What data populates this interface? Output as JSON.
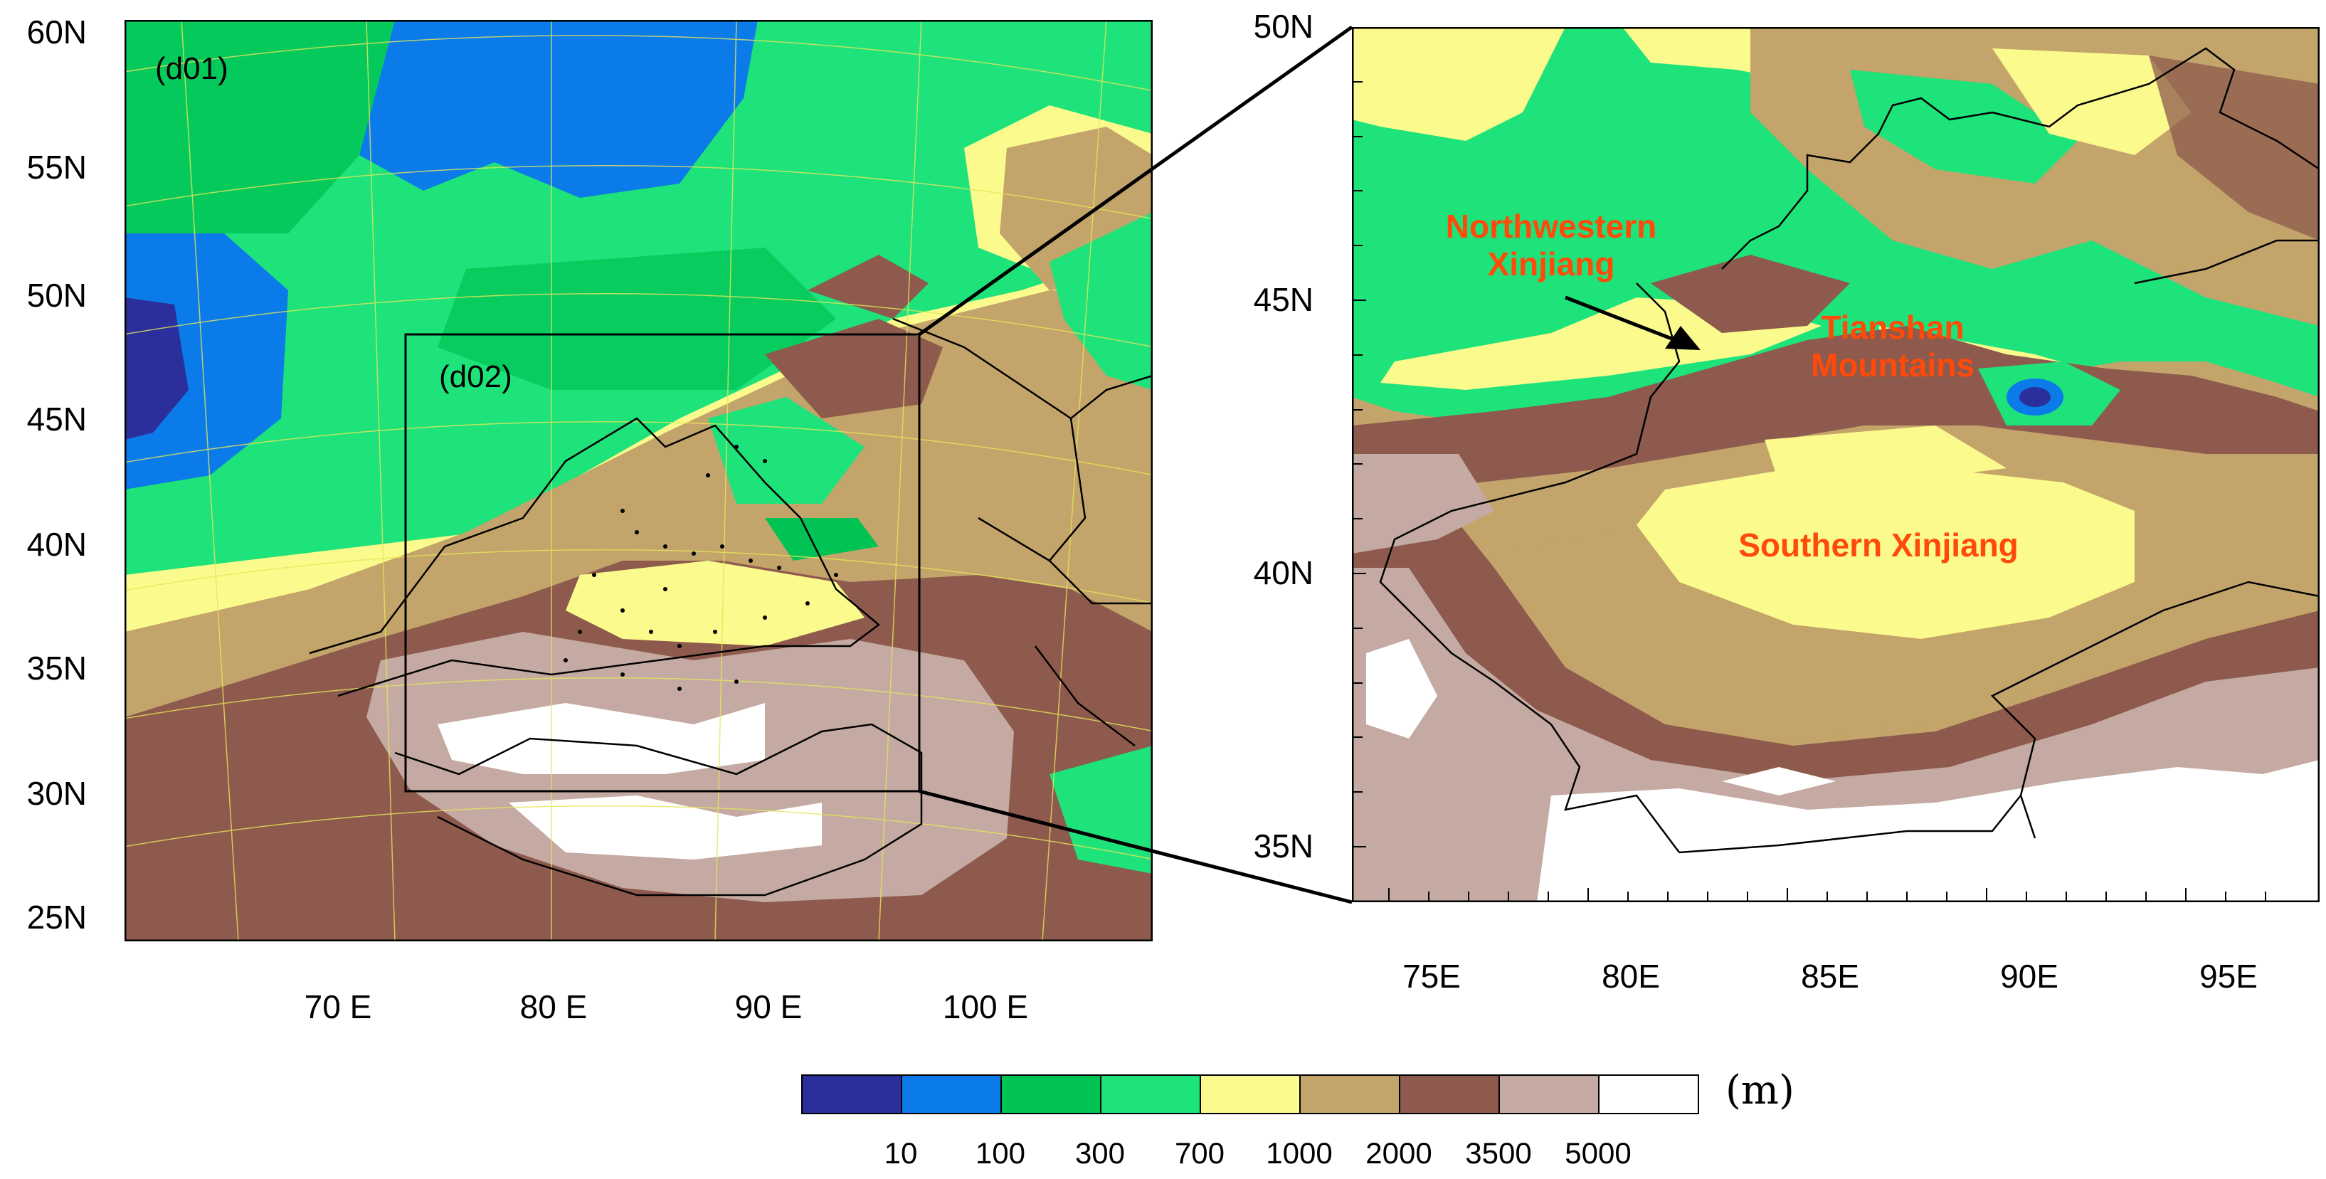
{
  "left_map": {
    "domain_label": "(d01)",
    "subdomain_label": "(d02)",
    "lat_labels": [
      "60N",
      "55N",
      "50N",
      "45N",
      "40N",
      "35N",
      "30N",
      "25N"
    ],
    "lon_labels": [
      "70 E",
      "80 E",
      "90 E",
      "100 E"
    ]
  },
  "right_map": {
    "lat_labels": [
      "50N",
      "45N",
      "40N",
      "35N"
    ],
    "lon_labels": [
      "75E",
      "80E",
      "85E",
      "90E",
      "95E"
    ],
    "annotations": {
      "northwestern": "Northwestern\nXinjiang",
      "tianshan": "Tianshan\nMountains",
      "southern": "Southern Xinjiang"
    }
  },
  "legend": {
    "unit": "(m)",
    "colors": [
      "#2a2f9c",
      "#0a7be8",
      "#00c354",
      "#1ee27a",
      "#fbfa8c",
      "#c3a46a",
      "#8d5a4d",
      "#c4aaa2",
      "#ffffff"
    ],
    "ticks": [
      "10",
      "100",
      "300",
      "700",
      "1000",
      "2000",
      "3500",
      "5000"
    ]
  }
}
